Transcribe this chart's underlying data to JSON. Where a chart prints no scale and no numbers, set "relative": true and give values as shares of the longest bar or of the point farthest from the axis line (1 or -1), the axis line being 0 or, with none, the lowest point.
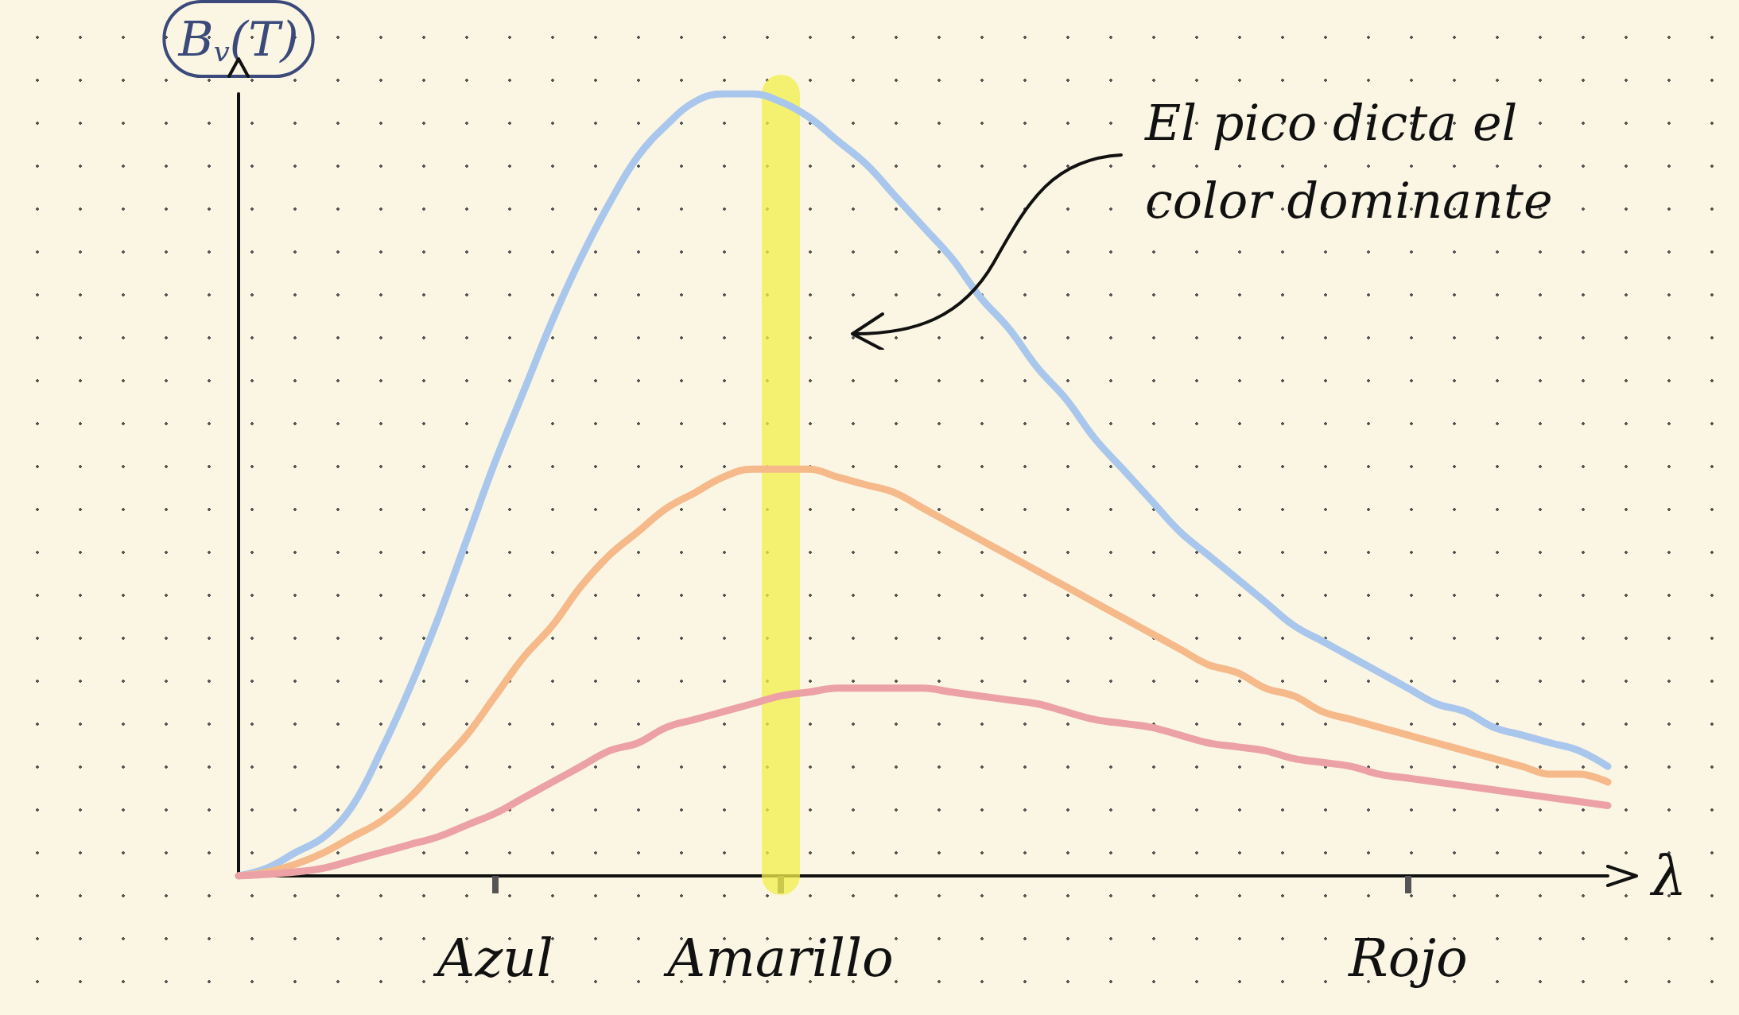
{
  "chart_data": {
    "type": "line",
    "relative": true,
    "ylabel": "B$_{v}$(T)",
    "xlabel": "λ",
    "grid": false,
    "line_style": "solid",
    "categories": [
      null,
      null,
      null,
      null,
      null,
      null,
      null,
      null,
      null,
      "Azul",
      null,
      null,
      null,
      null,
      null,
      null,
      null,
      null,
      null,
      "Amarillo",
      null,
      null,
      null,
      null,
      null,
      null,
      null,
      null,
      null,
      null,
      null,
      null,
      null,
      null,
      null,
      null,
      null,
      null,
      null,
      null,
      null,
      "Rojo",
      null,
      null,
      null,
      null,
      null,
      null,
      null
    ],
    "series": [
      {
        "color": "#a9c6ec",
        "values": [
          0,
          0.01,
          0.03,
          0.05,
          0.09,
          0.16,
          0.24,
          0.33,
          0.43,
          0.53,
          0.62,
          0.71,
          0.79,
          0.86,
          0.92,
          0.96,
          0.99,
          1,
          1,
          0.99,
          0.97,
          0.94,
          0.91,
          0.87,
          0.83,
          0.79,
          0.74,
          0.7,
          0.65,
          0.61,
          0.56,
          0.52,
          0.48,
          0.44,
          0.41,
          0.38,
          0.35,
          0.32,
          0.3,
          0.28,
          0.26,
          0.24,
          0.22,
          0.21,
          0.19,
          0.18,
          0.17,
          0.16,
          0.14
        ]
      },
      {
        "color": "#f5b98a",
        "values": [
          0,
          0.005,
          0.015,
          0.03,
          0.05,
          0.07,
          0.1,
          0.14,
          0.18,
          0.23,
          0.28,
          0.32,
          0.37,
          0.41,
          0.44,
          0.47,
          0.49,
          0.51,
          0.52,
          0.52,
          0.52,
          0.51,
          0.5,
          0.49,
          0.47,
          0.45,
          0.43,
          0.41,
          0.39,
          0.37,
          0.35,
          0.33,
          0.31,
          0.29,
          0.27,
          0.26,
          0.24,
          0.23,
          0.21,
          0.2,
          0.19,
          0.18,
          0.17,
          0.16,
          0.15,
          0.14,
          0.13,
          0.13,
          0.12
        ]
      },
      {
        "color": "#eba1a6",
        "values": [
          0,
          0.002,
          0.005,
          0.01,
          0.02,
          0.03,
          0.04,
          0.05,
          0.065,
          0.08,
          0.1,
          0.12,
          0.14,
          0.16,
          0.17,
          0.19,
          0.2,
          0.21,
          0.22,
          0.23,
          0.235,
          0.24,
          0.24,
          0.24,
          0.24,
          0.235,
          0.23,
          0.225,
          0.22,
          0.21,
          0.2,
          0.195,
          0.19,
          0.18,
          0.17,
          0.165,
          0.16,
          0.15,
          0.145,
          0.14,
          0.13,
          0.125,
          0.12,
          0.115,
          0.11,
          0.105,
          0.1,
          0.095,
          0.09
        ]
      }
    ],
    "ref_lines": [
      {
        "axis": "x",
        "value": "Amarillo",
        "color": "#f3ef4a"
      }
    ],
    "annotations": [
      "El pico dicta el color dominante"
    ]
  }
}
